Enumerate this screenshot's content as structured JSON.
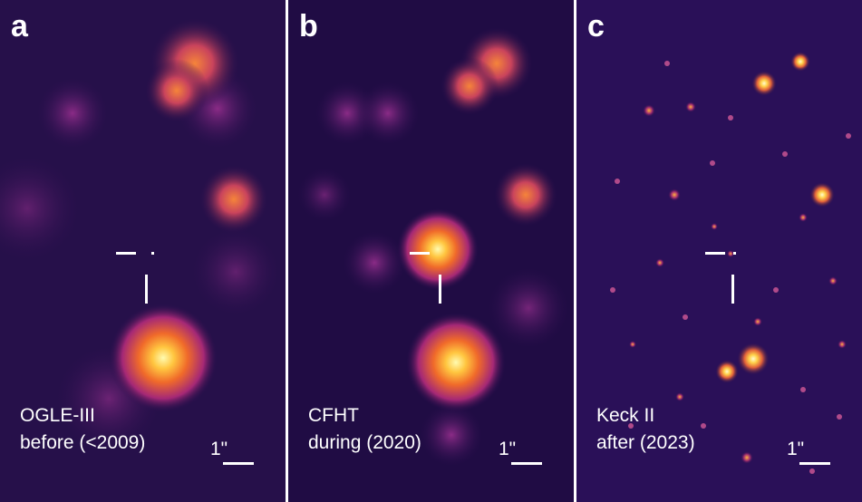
{
  "figure": {
    "panels": [
      {
        "letter": "a",
        "instrument": "OGLE-III",
        "epoch": "before (<2009)",
        "scale_label": "1\""
      },
      {
        "letter": "b",
        "instrument": "CFHT",
        "epoch": "during (2020)",
        "scale_label": "1\""
      },
      {
        "letter": "c",
        "instrument": "Keck II",
        "epoch": "after (2023)",
        "scale_label": "1\""
      }
    ]
  }
}
